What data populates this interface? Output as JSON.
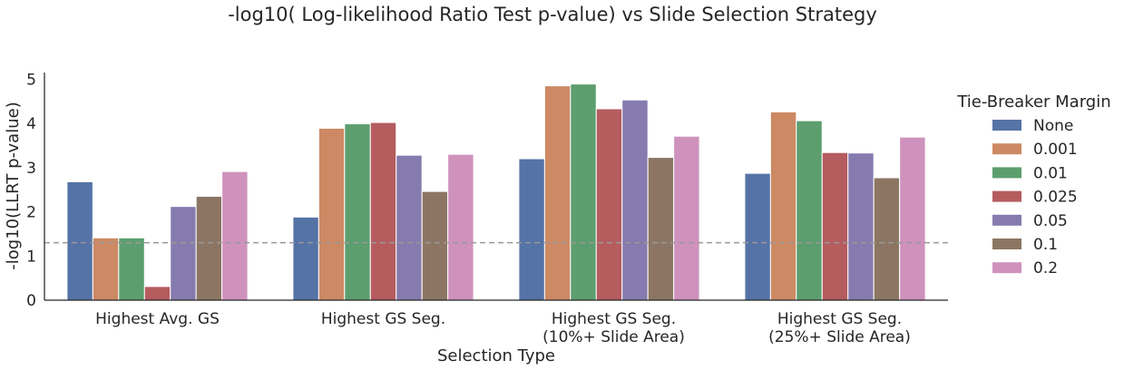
{
  "chart_data": {
    "type": "bar",
    "title": "-log10( Log-likelihood Ratio Test p-value) vs Slide Selection Strategy",
    "xlabel": "Selection Type",
    "ylabel": "-log10(LLRT p-value)",
    "ylim": [
      0,
      5.15
    ],
    "yticks": [
      "0",
      "1",
      "2",
      "3",
      "4",
      "5"
    ],
    "categories": [
      [
        "Highest Avg. GS"
      ],
      [
        "Highest GS Seg."
      ],
      [
        "Highest GS Seg.",
        "(10%+ Slide Area)"
      ],
      [
        "Highest GS Seg.",
        "(25%+ Slide Area)"
      ]
    ],
    "legend": {
      "title": "Tie-Breaker Margin",
      "placement": "right"
    },
    "reference_line": {
      "y": 1.3,
      "style": "dashed",
      "color": "#999999"
    },
    "grid": false,
    "series": [
      {
        "name": "None",
        "color": "#5573a6",
        "values": [
          2.68,
          1.88,
          3.2,
          2.87
        ]
      },
      {
        "name": "0.001",
        "color": "#cc8964",
        "values": [
          1.41,
          3.89,
          4.85,
          4.26
        ]
      },
      {
        "name": "0.01",
        "color": "#5c9e6e",
        "values": [
          1.41,
          3.99,
          4.89,
          4.06
        ]
      },
      {
        "name": "0.025",
        "color": "#b55c5f",
        "values": [
          0.31,
          4.02,
          4.33,
          3.34
        ]
      },
      {
        "name": "0.05",
        "color": "#867bae",
        "values": [
          2.12,
          3.28,
          4.53,
          3.33
        ]
      },
      {
        "name": "0.1",
        "color": "#8c7663",
        "values": [
          2.35,
          2.46,
          3.23,
          2.77
        ]
      },
      {
        "name": "0.2",
        "color": "#cf92bd",
        "values": [
          2.91,
          3.3,
          3.71,
          3.69
        ]
      }
    ]
  }
}
